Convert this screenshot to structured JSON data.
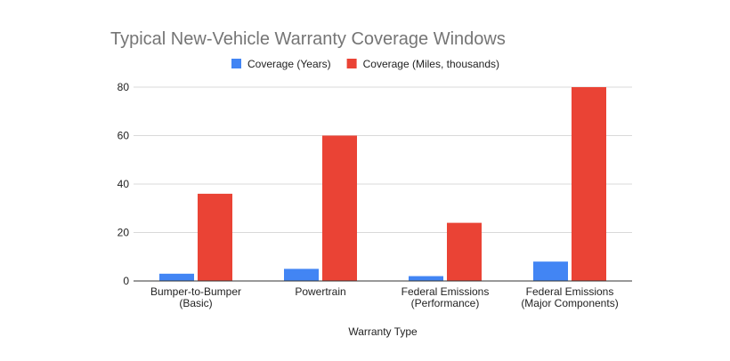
{
  "chart_data": {
    "type": "bar",
    "title": "Typical New-Vehicle Warranty Coverage Windows",
    "xlabel": "Warranty Type",
    "ylabel": "",
    "ylim": [
      0,
      80
    ],
    "yticks": [
      0,
      20,
      40,
      60,
      80
    ],
    "grid": true,
    "legend_position": "top",
    "categories": [
      [
        "Bumper-to-Bumper",
        "(Basic)"
      ],
      [
        "Powertrain"
      ],
      [
        "Federal Emissions",
        "(Performance)"
      ],
      [
        "Federal Emissions",
        "(Major Components)"
      ]
    ],
    "series": [
      {
        "name": "Coverage (Years)",
        "color": "#4285f4",
        "values": [
          3,
          5,
          2,
          8
        ]
      },
      {
        "name": "Coverage (Miles, thousands)",
        "color": "#ea4335",
        "values": [
          36,
          60,
          24,
          80
        ]
      }
    ]
  }
}
